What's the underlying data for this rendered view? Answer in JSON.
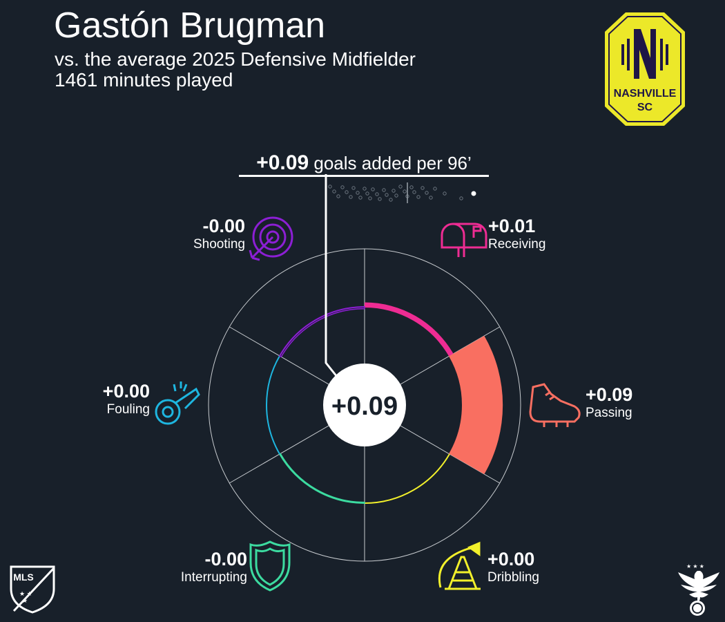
{
  "header": {
    "player": "Gastón Brugman",
    "subtitle": "vs. the average 2025 Defensive Midfielder",
    "minutes": "1461 minutes played"
  },
  "goals_added": {
    "value": "+0.09",
    "text": "goals added per 96’"
  },
  "center_label": "+0.09",
  "team_logo": {
    "line1": "NASHVILLE",
    "line2": "SC"
  },
  "mls_logo": "MLS",
  "colors": {
    "background": "#18202a",
    "receiving": "#ee2c93",
    "passing": "#f96f61",
    "dribbling": "#f2f02b",
    "interrupting": "#3cdba0",
    "fouling": "#1eb6e0",
    "shooting": "#8c1fd4",
    "team_yellow": "#ece829",
    "team_navy": "#1f1646"
  },
  "categories": [
    {
      "name": "Receiving",
      "value": "+0.01",
      "icon": "mailbox-icon"
    },
    {
      "name": "Passing",
      "value": "+0.09",
      "icon": "cleat-icon"
    },
    {
      "name": "Dribbling",
      "value": "+0.00",
      "icon": "cone-icon"
    },
    {
      "name": "Interrupting",
      "value": "-0.00",
      "icon": "shield-icon"
    },
    {
      "name": "Fouling",
      "value": "+0.00",
      "icon": "whistle-icon"
    },
    {
      "name": "Shooting",
      "value": "-0.00",
      "icon": "target-icon"
    }
  ],
  "chart_data": {
    "type": "radial-bar",
    "title": "Gastón Brugman",
    "metric": "goals added per 96’",
    "total": 0.09,
    "categories": [
      "Receiving",
      "Passing",
      "Dribbling",
      "Interrupting",
      "Fouling",
      "Shooting"
    ],
    "values": [
      0.01,
      0.09,
      0.0,
      -0.002,
      0.0,
      -0.004
    ],
    "range": [
      -0.05,
      0.13
    ],
    "distribution_highlight": 0.09
  }
}
